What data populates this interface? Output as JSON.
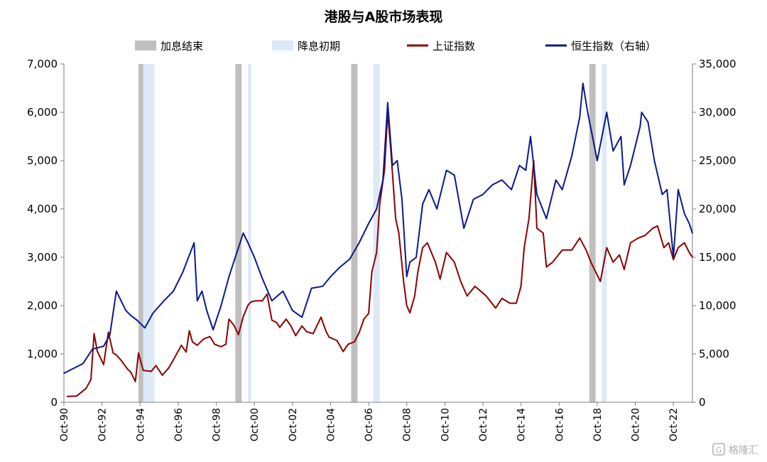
{
  "chart_data": {
    "type": "line",
    "title": "港股与A股市场表现",
    "legend": [
      {
        "label": "加息结束",
        "kind": "band",
        "color": "#bfbfbf"
      },
      {
        "label": "降息初期",
        "kind": "band",
        "color": "#dce9f7"
      },
      {
        "label": "上证指数",
        "kind": "line",
        "color": "#8b0000"
      },
      {
        "label": "恒生指数（右轴）",
        "kind": "line",
        "color": "#0a1a8c"
      }
    ],
    "legend_position": "top",
    "x_range": [
      "1990-10",
      "2023-10"
    ],
    "x_ticks": [
      "Oct-90",
      "Oct-92",
      "Oct-94",
      "Oct-96",
      "Oct-98",
      "Oct-00",
      "Oct-02",
      "Oct-04",
      "Oct-06",
      "Oct-08",
      "Oct-10",
      "Oct-12",
      "Oct-14",
      "Oct-16",
      "Oct-18",
      "Oct-20",
      "Oct-22"
    ],
    "y_left": {
      "min": 0,
      "max": 7000,
      "ticks": [
        "0",
        "1,000",
        "2,000",
        "3,000",
        "4,000",
        "5,000",
        "6,000",
        "7,000"
      ]
    },
    "y_right": {
      "min": 0,
      "max": 35000,
      "ticks": [
        "0",
        "5,000",
        "10,000",
        "15,000",
        "20,000",
        "25,000",
        "30,000",
        "35,000"
      ]
    },
    "grid": false,
    "bands": [
      {
        "kind": "hike_end",
        "start": "1994-09",
        "end": "1994-12"
      },
      {
        "kind": "cut_early",
        "start": "1994-12",
        "end": "1995-07"
      },
      {
        "kind": "hike_end",
        "start": "1999-10",
        "end": "2000-02"
      },
      {
        "kind": "cut_early",
        "start": "2000-06",
        "end": "2000-08"
      },
      {
        "kind": "hike_end",
        "start": "2005-11",
        "end": "2006-03"
      },
      {
        "kind": "cut_early",
        "start": "2007-01",
        "end": "2007-05"
      },
      {
        "kind": "hike_end",
        "start": "2018-05",
        "end": "2018-09"
      },
      {
        "kind": "cut_early",
        "start": "2019-01",
        "end": "2019-04"
      }
    ],
    "series": [
      {
        "name": "上证指数",
        "axis": "left",
        "color": "#8b0000",
        "x": [
          "1990-12",
          "1991-06",
          "1991-12",
          "1992-03",
          "1992-05",
          "1992-07",
          "1992-11",
          "1993-02",
          "1993-05",
          "1993-07",
          "1993-10",
          "1994-02",
          "1994-04",
          "1994-07",
          "1994-09",
          "1994-12",
          "1995-05",
          "1995-08",
          "1995-12",
          "1996-04",
          "1996-07",
          "1996-09",
          "1996-12",
          "1997-03",
          "1997-05",
          "1997-07",
          "1997-10",
          "1998-02",
          "1998-06",
          "1998-09",
          "1999-01",
          "1999-04",
          "1999-06",
          "1999-09",
          "1999-12",
          "2000-03",
          "2000-06",
          "2000-08",
          "2000-11",
          "2001-03",
          "2001-06",
          "2001-09",
          "2001-12",
          "2002-02",
          "2002-06",
          "2002-09",
          "2002-12",
          "2003-04",
          "2003-07",
          "2003-11",
          "2004-04",
          "2004-07",
          "2004-09",
          "2005-02",
          "2005-06",
          "2005-09",
          "2006-01",
          "2006-04",
          "2006-07",
          "2006-10",
          "2006-12",
          "2007-03",
          "2007-05",
          "2007-08",
          "2007-10",
          "2007-12",
          "2008-03",
          "2008-05",
          "2008-08",
          "2008-10",
          "2008-12",
          "2009-03",
          "2009-05",
          "2009-08",
          "2009-11",
          "2010-04",
          "2010-07",
          "2010-11",
          "2011-04",
          "2011-08",
          "2011-12",
          "2012-05",
          "2012-12",
          "2013-06",
          "2013-10",
          "2014-03",
          "2014-07",
          "2014-10",
          "2014-12",
          "2015-03",
          "2015-06",
          "2015-08",
          "2015-12",
          "2016-02",
          "2016-06",
          "2016-12",
          "2017-06",
          "2017-11",
          "2018-03",
          "2018-06",
          "2018-09",
          "2018-12",
          "2019-04",
          "2019-08",
          "2019-12",
          "2020-03",
          "2020-07",
          "2020-12",
          "2021-04",
          "2021-09",
          "2021-12",
          "2022-04",
          "2022-07",
          "2022-10",
          "2023-01",
          "2023-05",
          "2023-08",
          "2023-10"
        ],
        "values": [
          120,
          130,
          290,
          470,
          1420,
          1060,
          780,
          1450,
          1020,
          980,
          870,
          690,
          630,
          430,
          1020,
          660,
          640,
          760,
          560,
          710,
          880,
          1000,
          1180,
          1040,
          1480,
          1250,
          1180,
          1310,
          1360,
          1200,
          1150,
          1200,
          1720,
          1600,
          1400,
          1770,
          2010,
          2080,
          2100,
          2100,
          2240,
          1700,
          1650,
          1550,
          1720,
          1580,
          1380,
          1580,
          1460,
          1420,
          1760,
          1480,
          1350,
          1280,
          1050,
          1200,
          1250,
          1440,
          1720,
          1840,
          2700,
          3100,
          4100,
          4800,
          6000,
          5200,
          3800,
          3500,
          2500,
          2000,
          1850,
          2200,
          2700,
          3200,
          3300,
          2900,
          2550,
          3100,
          2900,
          2500,
          2200,
          2400,
          2200,
          1950,
          2150,
          2050,
          2050,
          2400,
          3200,
          3800,
          5000,
          3600,
          3500,
          2800,
          2900,
          3150,
          3150,
          3400,
          3150,
          2900,
          2700,
          2500,
          3200,
          2900,
          3050,
          2750,
          3300,
          3400,
          3450,
          3600,
          3650,
          3200,
          3300,
          2950,
          3200,
          3300,
          3100,
          3000
        ]
      },
      {
        "name": "恒生指数（右轴）",
        "axis": "right",
        "color": "#0a1a8c",
        "x": [
          "1990-10",
          "1991-04",
          "1991-10",
          "1992-04",
          "1992-11",
          "1993-03",
          "1993-07",
          "1994-01",
          "1994-04",
          "1994-08",
          "1995-01",
          "1995-06",
          "1996-01",
          "1996-07",
          "1997-01",
          "1997-08",
          "1997-10",
          "1998-01",
          "1998-04",
          "1998-08",
          "1999-01",
          "1999-06",
          "2000-03",
          "2000-06",
          "2000-10",
          "2001-03",
          "2001-09",
          "2002-04",
          "2002-10",
          "2003-04",
          "2003-10",
          "2004-05",
          "2004-10",
          "2005-04",
          "2005-10",
          "2006-04",
          "2006-10",
          "2007-03",
          "2007-07",
          "2007-10",
          "2008-01",
          "2008-04",
          "2008-07",
          "2008-10",
          "2008-12",
          "2009-04",
          "2009-08",
          "2009-12",
          "2010-05",
          "2010-11",
          "2011-04",
          "2011-10",
          "2012-04",
          "2012-10",
          "2013-04",
          "2013-10",
          "2014-04",
          "2014-09",
          "2015-01",
          "2015-04",
          "2015-08",
          "2016-02",
          "2016-08",
          "2016-12",
          "2017-06",
          "2017-11",
          "2018-01",
          "2018-04",
          "2018-10",
          "2019-04",
          "2019-08",
          "2020-01",
          "2020-03",
          "2020-07",
          "2021-01",
          "2021-02",
          "2021-06",
          "2021-10",
          "2022-03",
          "2022-06",
          "2022-10",
          "2023-01",
          "2023-05",
          "2023-08",
          "2023-10"
        ],
        "values": [
          3000,
          3500,
          4000,
          5500,
          5800,
          7000,
          11500,
          9500,
          9000,
          8500,
          7700,
          9200,
          10500,
          11500,
          13500,
          16500,
          10500,
          11500,
          9500,
          7500,
          10000,
          13000,
          17500,
          16500,
          15000,
          12800,
          10500,
          11500,
          9500,
          8800,
          11800,
          12000,
          13000,
          14000,
          14800,
          16500,
          18500,
          20000,
          23000,
          31000,
          24500,
          25000,
          21000,
          13000,
          14500,
          15000,
          20500,
          22000,
          20000,
          24000,
          23500,
          18000,
          21000,
          21500,
          22500,
          23000,
          22000,
          24500,
          24000,
          27500,
          21500,
          19000,
          23000,
          22000,
          25500,
          29500,
          33000,
          30000,
          25000,
          30000,
          26000,
          27500,
          22500,
          24500,
          28500,
          30000,
          29000,
          25000,
          21500,
          22000,
          15000,
          22000,
          19500,
          18500,
          17500
        ]
      }
    ]
  },
  "watermark": "格隆汇"
}
